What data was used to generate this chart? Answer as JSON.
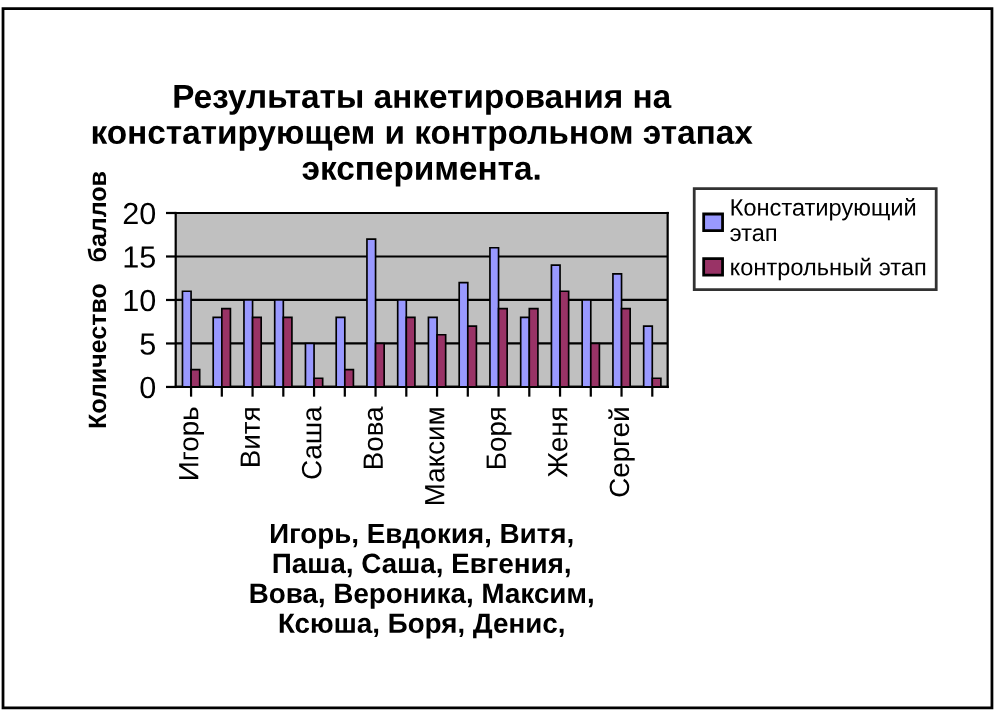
{
  "chart_data": {
    "type": "bar",
    "title": "Результаты анкетирования на\nконстатирующем и контрольном этапах\nэксперимента.",
    "xlabel": "Игорь, Евдокия, Витя,\nПаша, Саша, Евгения,\nВова, Вероника, Максим,\nКсюша, Боря, Денис,",
    "ylabel": "Количество   баллов",
    "categories": [
      "Игорь",
      null,
      "Витя",
      null,
      "Саша",
      null,
      "Вова",
      null,
      "Максим",
      null,
      "Боря",
      null,
      "Женя",
      null,
      "Сергей",
      null
    ],
    "series": [
      {
        "name": "Констатирующий\nэтап",
        "color": "#9999ff",
        "values": [
          11,
          8,
          10,
          10,
          5,
          8,
          17,
          10,
          8,
          12,
          16,
          8,
          14,
          10,
          13,
          7
        ]
      },
      {
        "name": "контрольный этап",
        "color": "#993366",
        "values": [
          2,
          9,
          8,
          8,
          1,
          2,
          5,
          8,
          6,
          7,
          9,
          9,
          11,
          5,
          9,
          1
        ]
      }
    ],
    "ylim": [
      0,
      20
    ],
    "yticks": [
      0,
      5,
      10,
      15,
      20
    ],
    "grid": "y",
    "legend": "right"
  }
}
